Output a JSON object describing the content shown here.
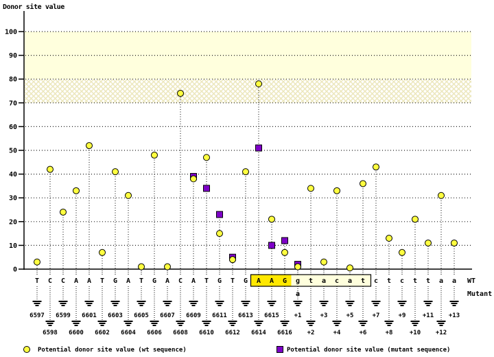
{
  "title": "Donor site value",
  "right_labels": {
    "wt": "WT",
    "mutant": "Mutant"
  },
  "legend": {
    "wt": "Potential donor site value (wt sequence)",
    "mutant": "Potential donor site value (mutant sequence)"
  },
  "colors": {
    "wt_marker": "#ffff40",
    "mutant_marker": "#7e00c8",
    "band_solid": "#ffffdd",
    "band_hatch_line": "#ece7bd",
    "grid": "#1a1a1a",
    "axis": "#000000",
    "blue_label": "#0000cc",
    "exon_highlight_bg": "#ffe800",
    "intron_highlight_bg": "#ffffdd"
  },
  "chart_data": {
    "type": "scatter",
    "title": "Donor site value",
    "ylabel": "Donor site value",
    "ylim": [
      0,
      110
    ],
    "grid": "dotted-horizontal",
    "legend_position": "bottom",
    "y_axis": {
      "ticks": [
        0,
        10,
        20,
        30,
        40,
        50,
        60,
        70,
        80,
        90,
        100
      ],
      "high_score_band": [
        80,
        100
      ],
      "medium_score_band": [
        70,
        80
      ]
    },
    "series": [
      {
        "name": "Potential donor site value (wt sequence)",
        "marker": "circle",
        "color": "#ffff40"
      },
      {
        "name": "Potential donor site value (mutant sequence)",
        "marker": "square",
        "color": "#7e00c8"
      }
    ],
    "points": [
      {
        "base": "T",
        "position": "6597",
        "wt": 3,
        "mutant": null
      },
      {
        "base": "C",
        "position": "6598",
        "wt": 42,
        "mutant": null
      },
      {
        "base": "C",
        "position": "6599",
        "wt": 24,
        "mutant": null
      },
      {
        "base": "A",
        "position": "6600",
        "wt": 33,
        "mutant": null
      },
      {
        "base": "A",
        "position": "6601",
        "wt": 52,
        "mutant": null
      },
      {
        "base": "T",
        "position": "6602",
        "wt": 7,
        "mutant": null
      },
      {
        "base": "G",
        "position": "6603",
        "wt": 41,
        "mutant": null
      },
      {
        "base": "A",
        "position": "6604",
        "wt": 31,
        "mutant": null
      },
      {
        "base": "T",
        "position": "6605",
        "wt": 1,
        "mutant": null
      },
      {
        "base": "G",
        "position": "6606",
        "wt": 48,
        "mutant": null
      },
      {
        "base": "A",
        "position": "6607",
        "wt": 1,
        "mutant": null
      },
      {
        "base": "C",
        "position": "6608",
        "wt": 74,
        "mutant": null
      },
      {
        "base": "A",
        "position": "6609",
        "wt": 38,
        "mutant": 39
      },
      {
        "base": "T",
        "position": "6610",
        "wt": 47,
        "mutant": 34
      },
      {
        "base": "G",
        "position": "6611",
        "wt": 15,
        "mutant": 23
      },
      {
        "base": "T",
        "position": "6612",
        "wt": 4,
        "mutant": 5
      },
      {
        "base": "G",
        "position": "6613",
        "wt": 41,
        "mutant": null
      },
      {
        "base": "A",
        "position": "6614",
        "wt": 78,
        "mutant": 51
      },
      {
        "base": "A",
        "position": "6615",
        "wt": 21,
        "mutant": 10
      },
      {
        "base": "G",
        "position": "6616",
        "wt": 7,
        "mutant": 12
      },
      {
        "base": "g",
        "position": "+1",
        "wt": 1,
        "mutant": 2
      },
      {
        "base": "t",
        "position": "+2",
        "wt": 34,
        "mutant": null
      },
      {
        "base": "a",
        "position": "+3",
        "wt": 3,
        "mutant": null
      },
      {
        "base": "c",
        "position": "+4",
        "wt": 33,
        "mutant": null
      },
      {
        "base": "a",
        "position": "+5",
        "wt": 0.5,
        "mutant": null
      },
      {
        "base": "t",
        "position": "+6",
        "wt": 36,
        "mutant": null
      },
      {
        "base": "c",
        "position": "+7",
        "wt": 43,
        "mutant": null
      },
      {
        "base": "t",
        "position": "+8",
        "wt": 13,
        "mutant": null
      },
      {
        "base": "c",
        "position": "+9",
        "wt": 7,
        "mutant": null
      },
      {
        "base": "t",
        "position": "+10",
        "wt": 21,
        "mutant": null
      },
      {
        "base": "t",
        "position": "+11",
        "wt": 11,
        "mutant": null
      },
      {
        "base": "a",
        "position": "+12",
        "wt": 31,
        "mutant": null
      },
      {
        "base": "a",
        "position": "+13",
        "wt": 11,
        "mutant": null
      }
    ],
    "highlight_box": {
      "start_base_index": 17,
      "end_base_index": 25,
      "exon_part": "AAG",
      "intron_part": "gtacat"
    },
    "mutation": {
      "base_index": 20,
      "position_label": "+1",
      "wt_base": "g",
      "mutant_base": "a"
    }
  }
}
